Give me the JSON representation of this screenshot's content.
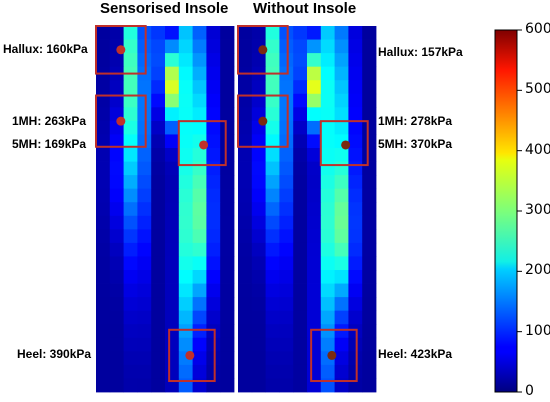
{
  "chart_data": {
    "type": "heatmap",
    "panels": [
      {
        "title": "Sensorised Insole",
        "regions": [
          {
            "name": "Hallux",
            "label": "Hallux: 160kPa",
            "value": 160
          },
          {
            "name": "1MH",
            "label": "1MH: 263kPa",
            "value": 263
          },
          {
            "name": "5MH",
            "label": "5MH: 169kPa",
            "value": 169
          },
          {
            "name": "Heel",
            "label": "Heel: 390kPa",
            "value": 390
          }
        ]
      },
      {
        "title": "Without Insole",
        "regions": [
          {
            "name": "Hallux",
            "label": "Hallux: 157kPa",
            "value": 157
          },
          {
            "name": "1MH",
            "label": "1MH: 278kPa",
            "value": 278
          },
          {
            "name": "5MH",
            "label": "5MH: 370kPa",
            "value": 370
          },
          {
            "name": "Heel",
            "label": "Heel: 423kPa",
            "value": 423
          }
        ]
      }
    ],
    "colorbar": {
      "colormap": "jet",
      "range": [
        0,
        600
      ],
      "ticks": [
        "0",
        "100",
        "200",
        "300",
        "400",
        "500",
        "600"
      ]
    },
    "colors": {
      "background": "#00007f",
      "region_box": "#c0302a",
      "marker_left": "#c0302a",
      "marker_right": "#7a2a10"
    }
  }
}
